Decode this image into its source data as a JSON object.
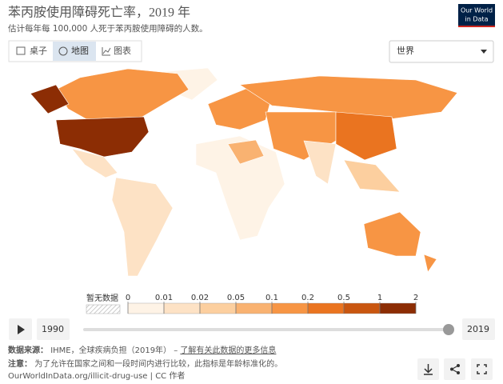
{
  "header": {
    "title": "苯丙胺使用障碍死亡率，2019 年",
    "subtitle": "估计每年每 100,000 人死于苯丙胺使用障碍的人数。",
    "logo": [
      "Our World",
      "in Data"
    ]
  },
  "tabs": [
    "桌子",
    "地图",
    "图表"
  ],
  "region": "世界",
  "legend": {
    "no_data": "暂无数据",
    "bins": [
      0,
      0.01,
      0.02,
      0.05,
      0.1,
      0.2,
      0.5,
      1,
      2
    ],
    "colors": [
      "#fef3e6",
      "#fde2c5",
      "#fccf9f",
      "#f9b271",
      "#f79544",
      "#ea7420",
      "#c95610",
      "#8c2d04"
    ]
  },
  "timeline": {
    "start": 1990,
    "end": 2019
  },
  "footer": {
    "source_label": "数据来源：",
    "source": "IHME，全球疾病负担（2019年） –",
    "source_link": "了解有关此数据的更多信息",
    "note_label": "注意：",
    "note": "为了允许在国家之间和一段时间内进行比较，此指标是年龄标准化的。",
    "url": "OurWorldInData.org/illicit-drug-use | CC 作者"
  }
}
